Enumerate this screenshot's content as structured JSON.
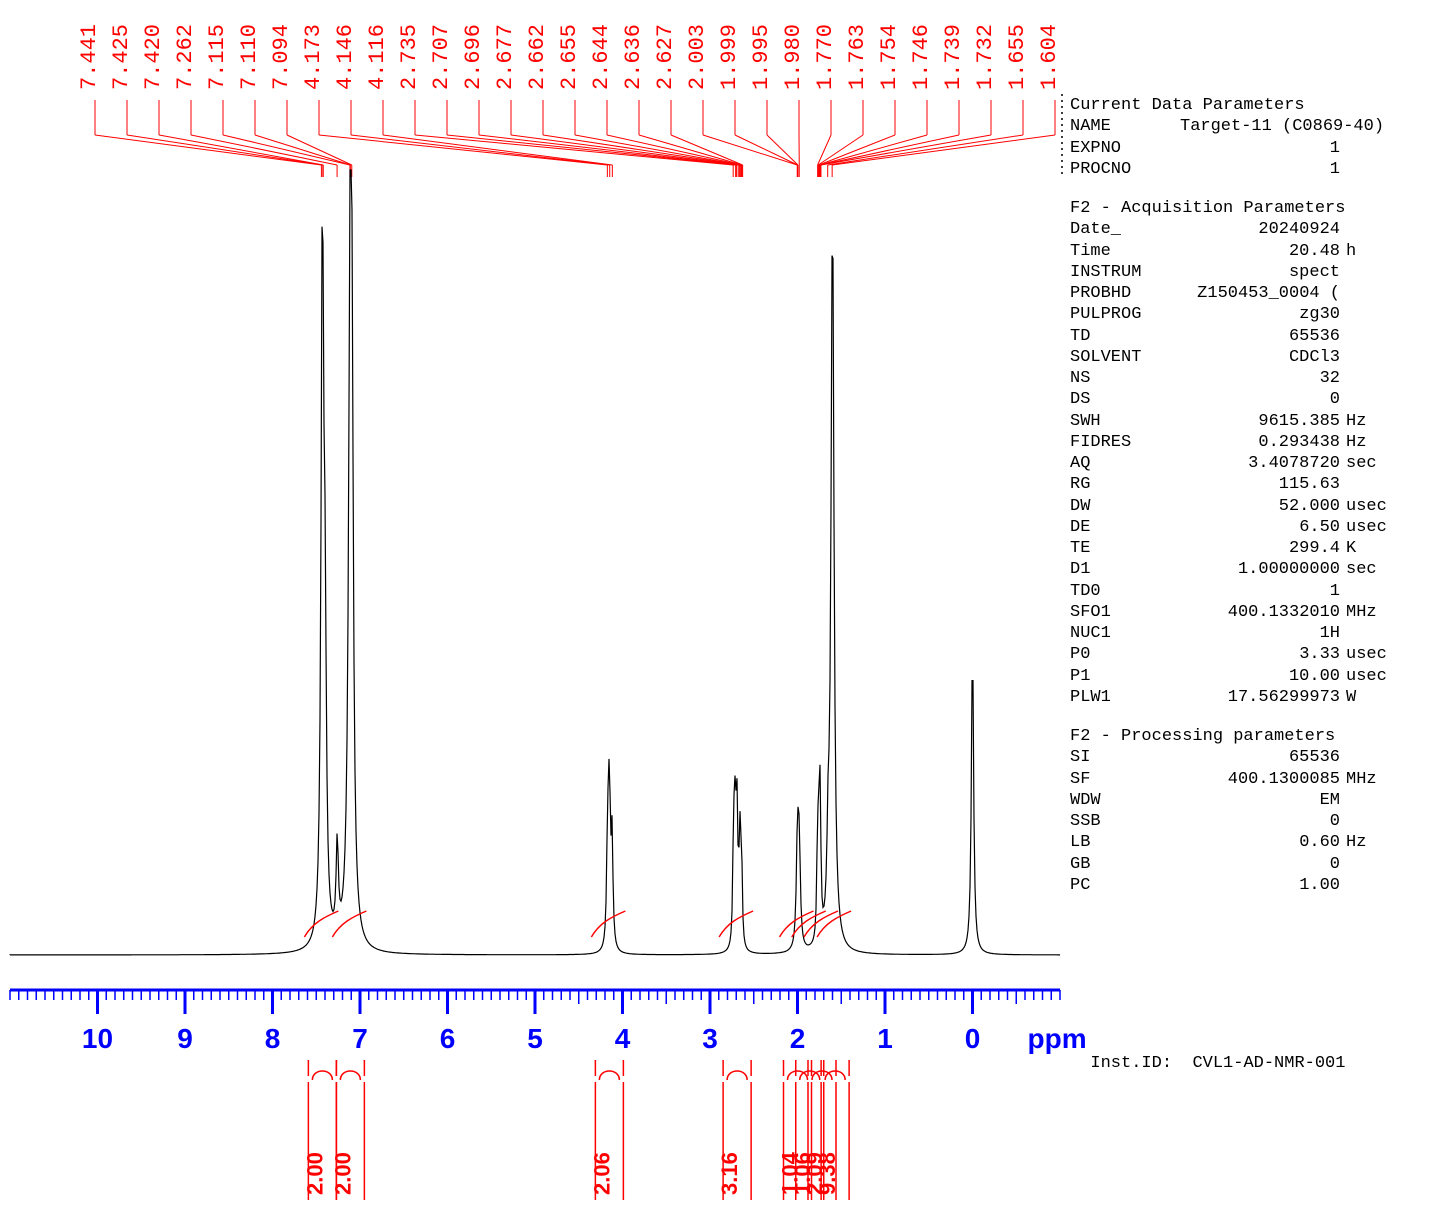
{
  "colors": {
    "annotation": "#ff0000",
    "axis": "#0000ff",
    "trace": "#000000",
    "text": "#000000",
    "bg": "#ffffff"
  },
  "plot": {
    "xlim": [
      11.0,
      -1.0
    ],
    "x_ticks": [
      10,
      9,
      8,
      7,
      6,
      5,
      4,
      3,
      2,
      1,
      0
    ],
    "x_unit": "ppm",
    "axis_fontsize": 28,
    "tick_fontweight": "bold",
    "baseline_y": 0.04,
    "peak_labels": [
      7.441,
      7.425,
      7.42,
      7.262,
      7.115,
      7.11,
      7.094,
      4.173,
      4.146,
      4.116,
      2.735,
      2.707,
      2.696,
      2.677,
      2.662,
      2.655,
      2.644,
      2.636,
      2.627,
      2.003,
      1.999,
      1.995,
      1.98,
      1.77,
      1.763,
      1.754,
      1.746,
      1.739,
      1.732,
      1.655,
      1.604
    ],
    "peak_label_fontsize": 22,
    "spectrum_peaks": [
      {
        "ppm": 7.43,
        "height": 0.9,
        "width": 0.035,
        "shape": "tall"
      },
      {
        "ppm": 7.4,
        "height": 0.35,
        "width": 0.035,
        "shape": "tall"
      },
      {
        "ppm": 7.26,
        "height": 0.12,
        "width": 0.03,
        "shape": "small"
      },
      {
        "ppm": 7.11,
        "height": 0.92,
        "width": 0.045,
        "shape": "tall"
      },
      {
        "ppm": 7.09,
        "height": 0.4,
        "width": 0.035,
        "shape": "tall"
      },
      {
        "ppm": 4.17,
        "height": 0.14,
        "width": 0.025,
        "shape": "small"
      },
      {
        "ppm": 4.15,
        "height": 0.2,
        "width": 0.025,
        "shape": "small"
      },
      {
        "ppm": 4.12,
        "height": 0.14,
        "width": 0.025,
        "shape": "small"
      },
      {
        "ppm": 2.73,
        "height": 0.16,
        "width": 0.02,
        "shape": "small"
      },
      {
        "ppm": 2.71,
        "height": 0.18,
        "width": 0.02,
        "shape": "small"
      },
      {
        "ppm": 2.69,
        "height": 0.16,
        "width": 0.02,
        "shape": "small"
      },
      {
        "ppm": 2.66,
        "height": 0.14,
        "width": 0.02,
        "shape": "small"
      },
      {
        "ppm": 2.64,
        "height": 0.12,
        "width": 0.02,
        "shape": "small"
      },
      {
        "ppm": 2.0,
        "height": 0.14,
        "width": 0.03,
        "shape": "small"
      },
      {
        "ppm": 1.98,
        "height": 0.12,
        "width": 0.03,
        "shape": "small"
      },
      {
        "ppm": 1.77,
        "height": 0.14,
        "width": 0.02,
        "shape": "small"
      },
      {
        "ppm": 1.75,
        "height": 0.14,
        "width": 0.02,
        "shape": "small"
      },
      {
        "ppm": 1.74,
        "height": 0.12,
        "width": 0.02,
        "shape": "small"
      },
      {
        "ppm": 1.65,
        "height": 0.1,
        "width": 0.03,
        "shape": "small"
      },
      {
        "ppm": 1.6,
        "height": 0.95,
        "width": 0.04,
        "shape": "tall"
      },
      {
        "ppm": 0.0,
        "height": 0.4,
        "width": 0.03,
        "shape": "tall"
      }
    ],
    "integrals": [
      {
        "ppm": 7.43,
        "value": "2.00"
      },
      {
        "ppm": 7.11,
        "value": "2.00"
      },
      {
        "ppm": 4.15,
        "value": "2.06"
      },
      {
        "ppm": 2.69,
        "value": "3.16"
      },
      {
        "ppm": 2.0,
        "value": "1.04"
      },
      {
        "ppm": 1.86,
        "value": "1.06"
      },
      {
        "ppm": 1.72,
        "value": "2.09"
      },
      {
        "ppm": 1.57,
        "value": "9.38"
      }
    ],
    "integral_fontsize": 22
  },
  "params": {
    "sections": [
      {
        "title": "Current Data Parameters",
        "rows": [
          {
            "label": "NAME",
            "value": "Target-11 (C0869-40)",
            "unit": "",
            "wide": true
          },
          {
            "label": "EXPNO",
            "value": "1",
            "unit": ""
          },
          {
            "label": "PROCNO",
            "value": "1",
            "unit": ""
          }
        ]
      },
      {
        "title": "F2 - Acquisition Parameters",
        "rows": [
          {
            "label": "Date_",
            "value": "20240924",
            "unit": ""
          },
          {
            "label": "Time",
            "value": "20.48",
            "unit": "h"
          },
          {
            "label": "INSTRUM",
            "value": "spect",
            "unit": ""
          },
          {
            "label": "PROBHD",
            "value": "Z150453_0004 (",
            "unit": ""
          },
          {
            "label": "PULPROG",
            "value": "zg30",
            "unit": ""
          },
          {
            "label": "TD",
            "value": "65536",
            "unit": ""
          },
          {
            "label": "SOLVENT",
            "value": "CDCl3",
            "unit": ""
          },
          {
            "label": "NS",
            "value": "32",
            "unit": ""
          },
          {
            "label": "DS",
            "value": "0",
            "unit": ""
          },
          {
            "label": "SWH",
            "value": "9615.385",
            "unit": "Hz"
          },
          {
            "label": "FIDRES",
            "value": "0.293438",
            "unit": "Hz"
          },
          {
            "label": "AQ",
            "value": "3.4078720",
            "unit": "sec"
          },
          {
            "label": "RG",
            "value": "115.63",
            "unit": ""
          },
          {
            "label": "DW",
            "value": "52.000",
            "unit": "usec"
          },
          {
            "label": "DE",
            "value": "6.50",
            "unit": "usec"
          },
          {
            "label": "TE",
            "value": "299.4",
            "unit": "K"
          },
          {
            "label": "D1",
            "value": "1.00000000",
            "unit": "sec"
          },
          {
            "label": "TD0",
            "value": "1",
            "unit": ""
          },
          {
            "label": "SFO1",
            "value": "400.1332010",
            "unit": "MHz"
          },
          {
            "label": "NUC1",
            "value": "1H",
            "unit": ""
          },
          {
            "label": "P0",
            "value": "3.33",
            "unit": "usec"
          },
          {
            "label": "P1",
            "value": "10.00",
            "unit": "usec"
          },
          {
            "label": "PLW1",
            "value": "17.56299973",
            "unit": "W"
          }
        ]
      },
      {
        "title": "F2 - Processing parameters",
        "rows": [
          {
            "label": "SI",
            "value": "65536",
            "unit": ""
          },
          {
            "label": "SF",
            "value": "400.1300085",
            "unit": "MHz"
          },
          {
            "label": "WDW",
            "value": "EM",
            "unit": ""
          },
          {
            "label": "SSB",
            "value": "0",
            "unit": ""
          },
          {
            "label": "LB",
            "value": "0.60",
            "unit": "Hz"
          },
          {
            "label": "GB",
            "value": "0",
            "unit": ""
          },
          {
            "label": "PC",
            "value": "1.00",
            "unit": ""
          }
        ]
      }
    ],
    "inst_id_label": "Inst.ID:",
    "inst_id_value": "CVL1-AD-NMR-001"
  }
}
